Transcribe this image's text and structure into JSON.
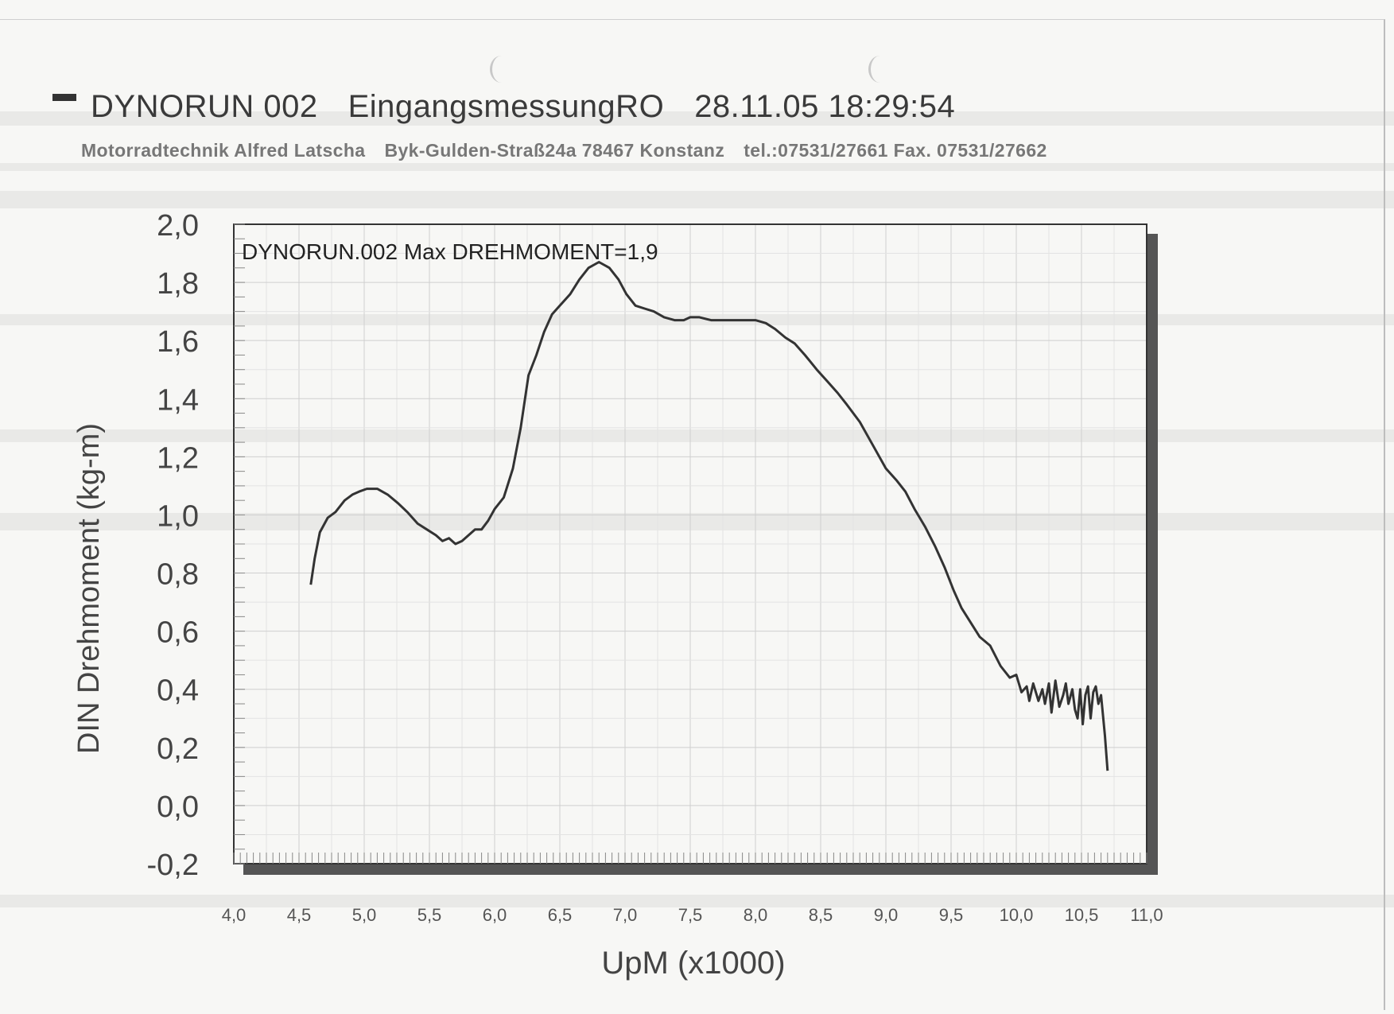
{
  "header": {
    "run": "DYNORUN 002",
    "measurement": "EingangsmessungRO",
    "datetime": "28.11.05 18:29:54"
  },
  "company": {
    "name": "Motorradtechnik Alfred Latscha",
    "address": "Byk-Gulden-Straß24a 78467 Konstanz",
    "contact": "tel.:07531/27661 Fax. 07531/27662"
  },
  "chart_data": {
    "type": "line",
    "title": "DYNORUN.002  Max DREHMOMENT=1,9",
    "xlabel": "UpM (x1000)",
    "ylabel": "DIN Drehmoment (kg-m)",
    "xlim": [
      4.0,
      11.0
    ],
    "ylim": [
      -0.2,
      2.0
    ],
    "x_ticks": [
      "4,0",
      "4,5",
      "5,0",
      "5,5",
      "6,0",
      "6,5",
      "7,0",
      "7,5",
      "8,0",
      "8,5",
      "9,0",
      "9,5",
      "10,0",
      "10,5",
      "11,0"
    ],
    "y_ticks": [
      "2,0",
      "1,8",
      "1,6",
      "1,4",
      "1,2",
      "1,0",
      "0,8",
      "0,6",
      "0,4",
      "0,2",
      "0,0",
      "-0,2"
    ],
    "grid": true,
    "line_color": "#333333",
    "series": [
      {
        "x": [
          4.59,
          4.62,
          4.66,
          4.72,
          4.78,
          4.85,
          4.91,
          4.96,
          5.02,
          5.1,
          5.18,
          5.26,
          5.33,
          5.41,
          5.48,
          5.55,
          5.6,
          5.65,
          5.7,
          5.75,
          5.8,
          5.85,
          5.9,
          5.95,
          6.0,
          6.07,
          6.14,
          6.2,
          6.26,
          6.32,
          6.38,
          6.44,
          6.5,
          6.58,
          6.65,
          6.72,
          6.8,
          6.88,
          6.95,
          7.01,
          7.08,
          7.15,
          7.22,
          7.3,
          7.38,
          7.45,
          7.5,
          7.57,
          7.66,
          7.75,
          7.84,
          7.92,
          8.0,
          8.08,
          8.15,
          8.23,
          8.3,
          8.38,
          8.47,
          8.55,
          8.63,
          8.7,
          8.8,
          8.9,
          9.0,
          9.08,
          9.15,
          9.22,
          9.3,
          9.38,
          9.45,
          9.52,
          9.58,
          9.65,
          9.72,
          9.8,
          9.88,
          9.95,
          10.0,
          10.04,
          10.08,
          10.1,
          10.13,
          10.17,
          10.2,
          10.22,
          10.25,
          10.27,
          10.3,
          10.33,
          10.36,
          10.38,
          10.4,
          10.43,
          10.45,
          10.47,
          10.49,
          10.51,
          10.53,
          10.55,
          10.57,
          10.59,
          10.61,
          10.63,
          10.65,
          10.68,
          10.7
        ],
        "y": [
          0.76,
          0.85,
          0.94,
          0.99,
          1.01,
          1.05,
          1.07,
          1.08,
          1.09,
          1.09,
          1.07,
          1.04,
          1.01,
          0.97,
          0.95,
          0.93,
          0.91,
          0.92,
          0.9,
          0.91,
          0.93,
          0.95,
          0.95,
          0.98,
          1.02,
          1.06,
          1.16,
          1.3,
          1.48,
          1.55,
          1.63,
          1.69,
          1.72,
          1.76,
          1.81,
          1.85,
          1.87,
          1.85,
          1.81,
          1.76,
          1.72,
          1.71,
          1.7,
          1.68,
          1.67,
          1.67,
          1.68,
          1.68,
          1.67,
          1.67,
          1.67,
          1.67,
          1.67,
          1.66,
          1.64,
          1.61,
          1.59,
          1.55,
          1.5,
          1.46,
          1.42,
          1.38,
          1.32,
          1.24,
          1.16,
          1.12,
          1.08,
          1.02,
          0.96,
          0.89,
          0.82,
          0.74,
          0.68,
          0.63,
          0.58,
          0.55,
          0.48,
          0.44,
          0.45,
          0.39,
          0.41,
          0.36,
          0.42,
          0.36,
          0.4,
          0.35,
          0.42,
          0.32,
          0.43,
          0.34,
          0.38,
          0.42,
          0.35,
          0.4,
          0.33,
          0.3,
          0.4,
          0.28,
          0.38,
          0.41,
          0.3,
          0.39,
          0.41,
          0.35,
          0.38,
          0.24,
          0.12
        ]
      }
    ]
  }
}
